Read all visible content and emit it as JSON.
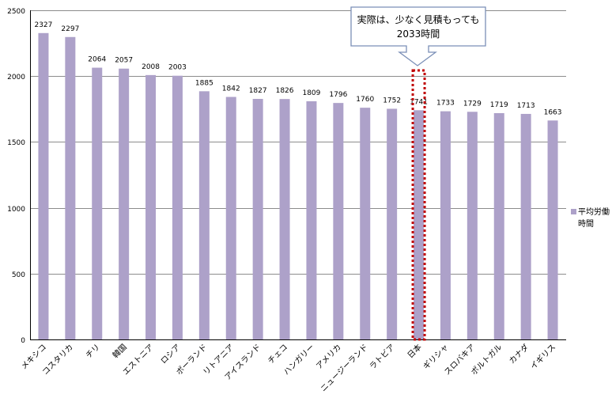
{
  "chart_data": {
    "type": "bar",
    "categories": [
      "メキシコ",
      "コスタリカ",
      "チリ",
      "韓国",
      "エストニア",
      "ロシア",
      "ポーランド",
      "リトアニア",
      "アイスランド",
      "チェコ",
      "ハンガリー",
      "アメリカ",
      "ニュージーランド",
      "ラトビア",
      "日本",
      "ギリシャ",
      "スロバキア",
      "ポルトガル",
      "カナダ",
      "イギリス"
    ],
    "series": [
      {
        "name": "平均労働時間",
        "values": [
          2327,
          2297,
          2064,
          2057,
          2008,
          2003,
          1885,
          1842,
          1827,
          1826,
          1809,
          1796,
          1760,
          1752,
          1741,
          1733,
          1729,
          1719,
          1713,
          1663
        ]
      }
    ],
    "ylim": [
      0,
      2500
    ],
    "yticks": [
      0,
      500,
      1000,
      1500,
      2000,
      2500
    ],
    "grid": true,
    "legend_position": "right",
    "highlight_category": "日本",
    "annotation": {
      "line1": "実際は、少なく見積もっても",
      "line2": "2033時間"
    },
    "colors": {
      "bar": "#ada1c9",
      "grid": "#8c8c8c",
      "highlight": "#c00000",
      "callout_border": "#7b8fb7"
    }
  },
  "legend": {
    "line1": "平均労働",
    "line2": "時間"
  }
}
